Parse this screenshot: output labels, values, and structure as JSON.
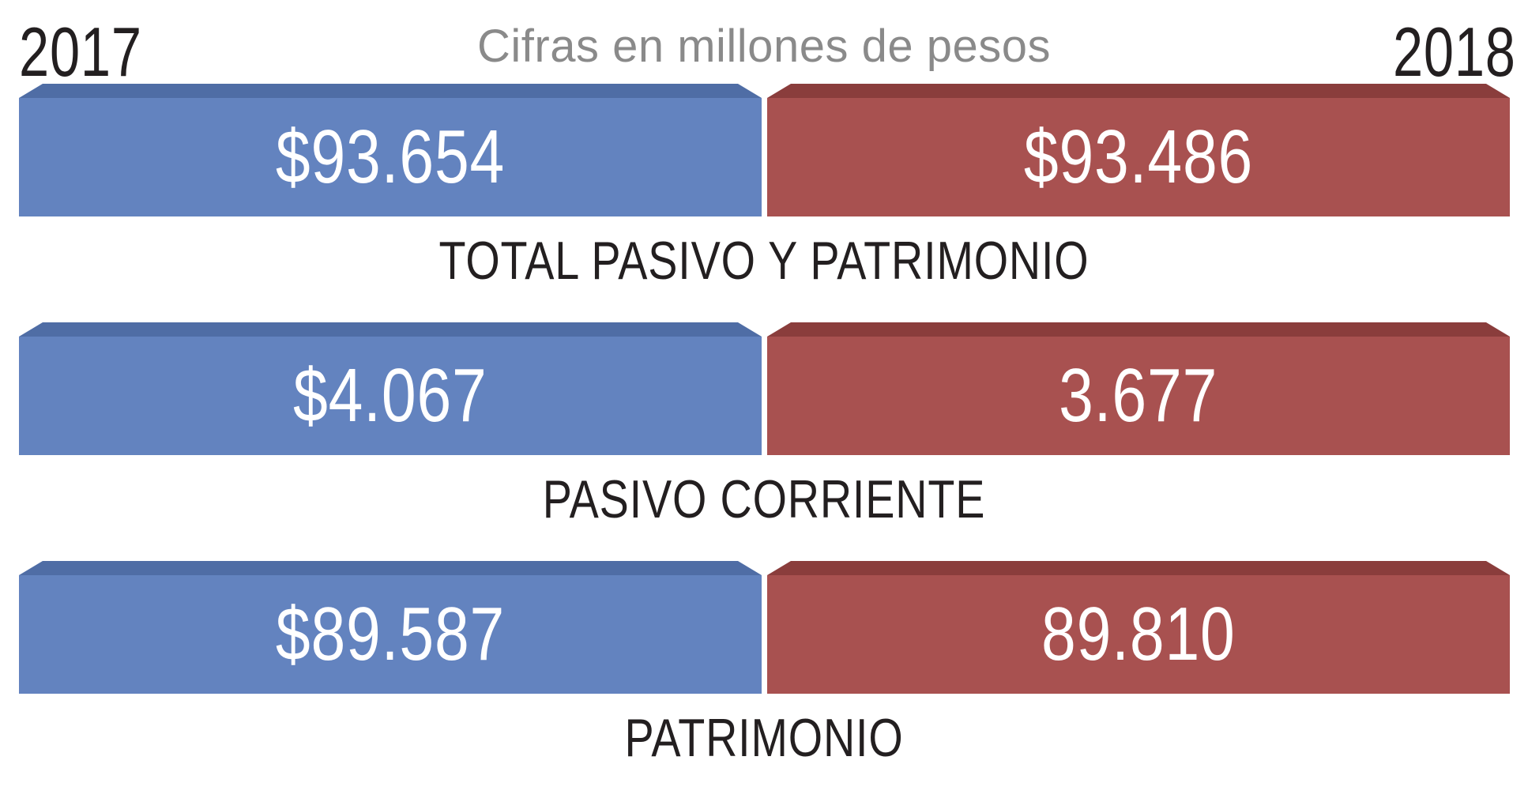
{
  "header": {
    "year_left": "2017",
    "year_right": "2018",
    "subtitle": "Cifras en millones de pesos"
  },
  "colors": {
    "year_2017": "#6383bf",
    "year_2018": "#a85150"
  },
  "rows": [
    {
      "label": "TOTAL PASIVO Y PATRIMONIO",
      "value_2017": "$93.654",
      "value_2018": "$93.486"
    },
    {
      "label": "PASIVO CORRIENTE",
      "value_2017": "$4.067",
      "value_2018": "3.677"
    },
    {
      "label": "PATRIMONIO",
      "value_2017": "$89.587",
      "value_2018": "89.810"
    }
  ]
}
